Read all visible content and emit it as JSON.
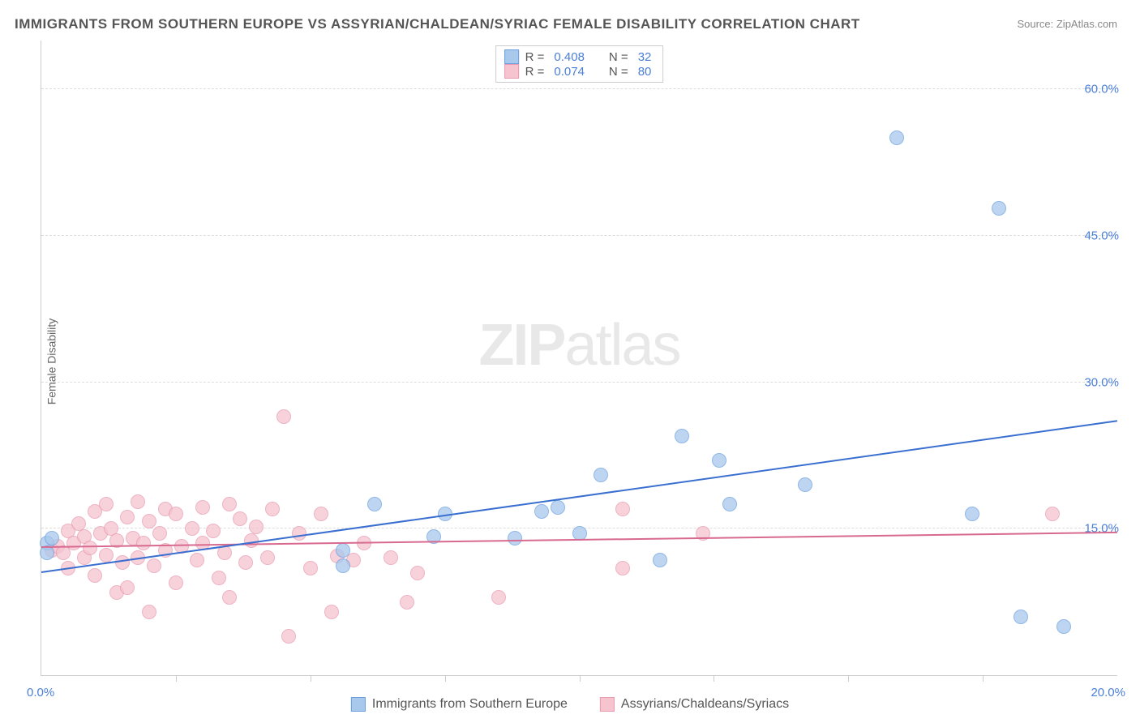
{
  "title": "IMMIGRANTS FROM SOUTHERN EUROPE VS ASSYRIAN/CHALDEAN/SYRIAC FEMALE DISABILITY CORRELATION CHART",
  "source": "Source: ZipAtlas.com",
  "y_axis_label": "Female Disability",
  "watermark_a": "ZIP",
  "watermark_b": "atlas",
  "chart": {
    "type": "scatter",
    "background_color": "#ffffff",
    "grid_color": "#dddddd",
    "axis_color": "#cccccc",
    "tick_label_color": "#4a7fd8",
    "x_range": [
      0,
      20
    ],
    "y_range": [
      0,
      65
    ],
    "y_ticks": [
      15,
      30,
      45,
      60
    ],
    "y_tick_labels": [
      "15.0%",
      "30.0%",
      "45.0%",
      "60.0%"
    ],
    "x_ticks": [
      0,
      2.5,
      5,
      7.5,
      10,
      12.5,
      15,
      17.5,
      20
    ],
    "x_tick_labels": {
      "0": "0.0%",
      "20": "20.0%"
    }
  },
  "series_blue": {
    "name": "Immigrants from Southern Europe",
    "fill_color": "#a8c8ec",
    "stroke_color": "#6a9fe0",
    "trend_color": "#3a6fd0",
    "r_value": "0.408",
    "n_value": "32",
    "trend": {
      "x1": 0,
      "y1": 10.5,
      "x2": 20,
      "y2": 26
    },
    "point_radius": 9,
    "points": [
      [
        0.1,
        13.5
      ],
      [
        0.2,
        14
      ],
      [
        0.1,
        12.5
      ],
      [
        5.6,
        11.2
      ],
      [
        5.6,
        12.8
      ],
      [
        6.2,
        17.5
      ],
      [
        7.3,
        14.2
      ],
      [
        7.5,
        16.5
      ],
      [
        8.8,
        14.0
      ],
      [
        9.3,
        16.8
      ],
      [
        9.6,
        17.2
      ],
      [
        10.0,
        14.5
      ],
      [
        10.4,
        20.5
      ],
      [
        11.5,
        11.8
      ],
      [
        11.9,
        24.5
      ],
      [
        12.6,
        22.0
      ],
      [
        12.8,
        17.5
      ],
      [
        14.2,
        19.5
      ],
      [
        17.3,
        16.5
      ],
      [
        15.9,
        55.0
      ],
      [
        17.8,
        47.8
      ],
      [
        18.2,
        6.0
      ],
      [
        19.0,
        5.0
      ]
    ]
  },
  "series_pink": {
    "name": "Assyrians/Chaldeans/Syriacs",
    "fill_color": "#f5c4cf",
    "stroke_color": "#e89ab0",
    "trend_color": "#d86a90",
    "r_value": "0.074",
    "n_value": "80",
    "trend": {
      "x1": 0,
      "y1": 13.0,
      "x2": 20,
      "y2": 14.5
    },
    "point_radius": 9,
    "points": [
      [
        0.2,
        12.8
      ],
      [
        0.3,
        13.2
      ],
      [
        0.4,
        12.5
      ],
      [
        0.5,
        14.8
      ],
      [
        0.5,
        11.0
      ],
      [
        0.6,
        13.5
      ],
      [
        0.7,
        15.5
      ],
      [
        0.8,
        12.0
      ],
      [
        0.8,
        14.2
      ],
      [
        0.9,
        13.0
      ],
      [
        1.0,
        16.8
      ],
      [
        1.0,
        10.2
      ],
      [
        1.1,
        14.5
      ],
      [
        1.2,
        12.3
      ],
      [
        1.2,
        17.5
      ],
      [
        1.3,
        15.0
      ],
      [
        1.4,
        8.5
      ],
      [
        1.4,
        13.8
      ],
      [
        1.5,
        11.5
      ],
      [
        1.6,
        16.2
      ],
      [
        1.6,
        9.0
      ],
      [
        1.7,
        14.0
      ],
      [
        1.8,
        17.8
      ],
      [
        1.8,
        12.0
      ],
      [
        1.9,
        13.5
      ],
      [
        2.0,
        15.8
      ],
      [
        2.0,
        6.5
      ],
      [
        2.1,
        11.2
      ],
      [
        2.2,
        14.5
      ],
      [
        2.3,
        17.0
      ],
      [
        2.3,
        12.8
      ],
      [
        2.5,
        16.5
      ],
      [
        2.5,
        9.5
      ],
      [
        2.6,
        13.2
      ],
      [
        2.8,
        15.0
      ],
      [
        2.9,
        11.8
      ],
      [
        3.0,
        17.2
      ],
      [
        3.0,
        13.5
      ],
      [
        3.2,
        14.8
      ],
      [
        3.3,
        10.0
      ],
      [
        3.4,
        12.5
      ],
      [
        3.5,
        17.5
      ],
      [
        3.5,
        8.0
      ],
      [
        3.7,
        16.0
      ],
      [
        3.8,
        11.5
      ],
      [
        3.9,
        13.8
      ],
      [
        4.0,
        15.2
      ],
      [
        4.2,
        12.0
      ],
      [
        4.3,
        17.0
      ],
      [
        4.5,
        26.5
      ],
      [
        4.6,
        4.0
      ],
      [
        4.8,
        14.5
      ],
      [
        5.0,
        11.0
      ],
      [
        5.2,
        16.5
      ],
      [
        5.4,
        6.5
      ],
      [
        5.5,
        12.2
      ],
      [
        5.8,
        11.8
      ],
      [
        6.0,
        13.5
      ],
      [
        6.5,
        12.0
      ],
      [
        6.8,
        7.5
      ],
      [
        7.0,
        10.5
      ],
      [
        8.5,
        8.0
      ],
      [
        10.8,
        17.0
      ],
      [
        10.8,
        11.0
      ],
      [
        12.3,
        14.5
      ],
      [
        18.8,
        16.5
      ]
    ]
  },
  "legend_r_label": "R =",
  "legend_n_label": "N ="
}
